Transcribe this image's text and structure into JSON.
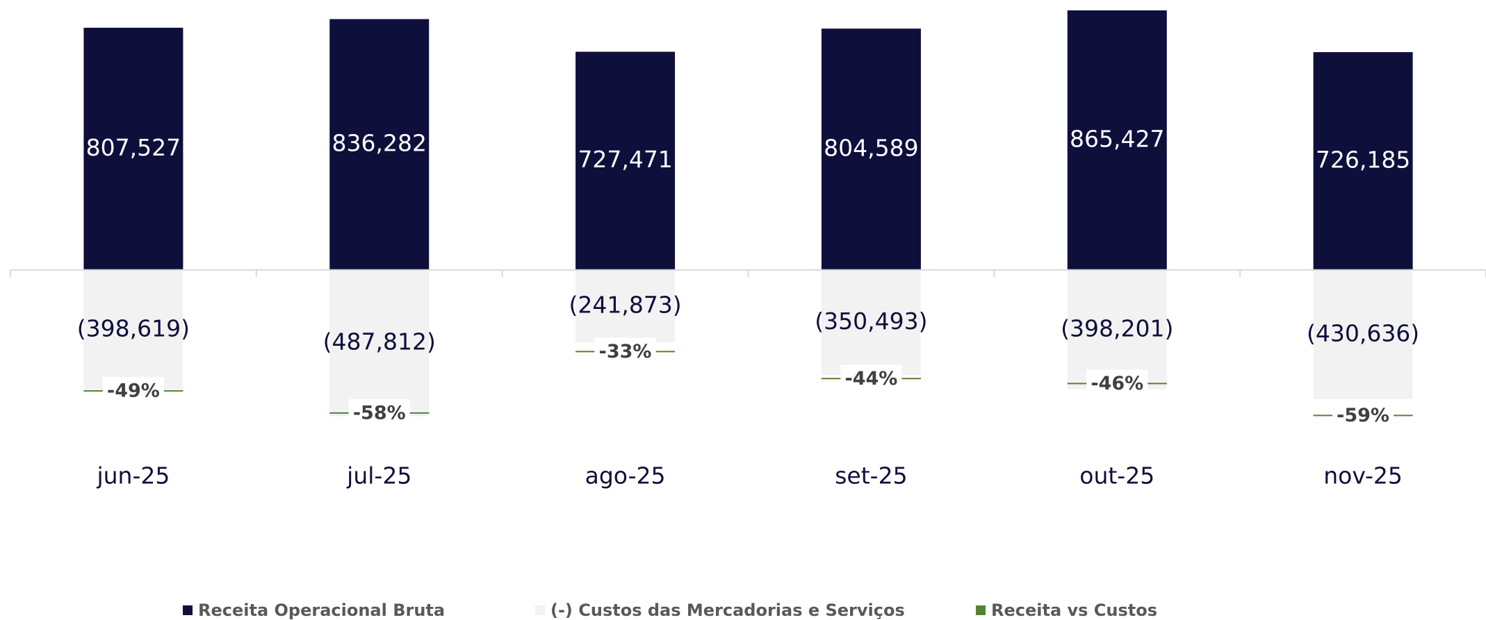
{
  "chart_data": {
    "type": "bar",
    "categories": [
      "jun-25",
      "jul-25",
      "ago-25",
      "set-25",
      "out-25",
      "nov-25"
    ],
    "series": [
      {
        "name": "Receita Operacional Bruta",
        "color": "#0f0f3c",
        "values": [
          807527,
          836282,
          727471,
          804589,
          865427,
          726185
        ],
        "value_labels": [
          "807,527",
          "836,282",
          "727,471",
          "804,589",
          "865,427",
          "726,185"
        ]
      },
      {
        "name": "(-) Custos das Mercadorias e Serviços",
        "color": "#f2f2f2",
        "values": [
          -398619,
          -487812,
          -241873,
          -350493,
          -398201,
          -430636
        ],
        "value_labels": [
          "(398,619)",
          "(487,812)",
          "(241,873)",
          "(350,493)",
          "(398,201)",
          "(430,636)"
        ]
      },
      {
        "name": "Receita vs Custos",
        "color": "#548235",
        "type": "line",
        "axis": "y2",
        "values": [
          -49,
          -58,
          -33,
          -44,
          -46,
          -59
        ],
        "value_labels": [
          "-49%",
          "-58%",
          "-33%",
          "-44%",
          "-46%",
          "-59%"
        ]
      }
    ],
    "ylim": [
      -600000,
      900000
    ],
    "y2lim": [
      -73,
      110
    ]
  }
}
